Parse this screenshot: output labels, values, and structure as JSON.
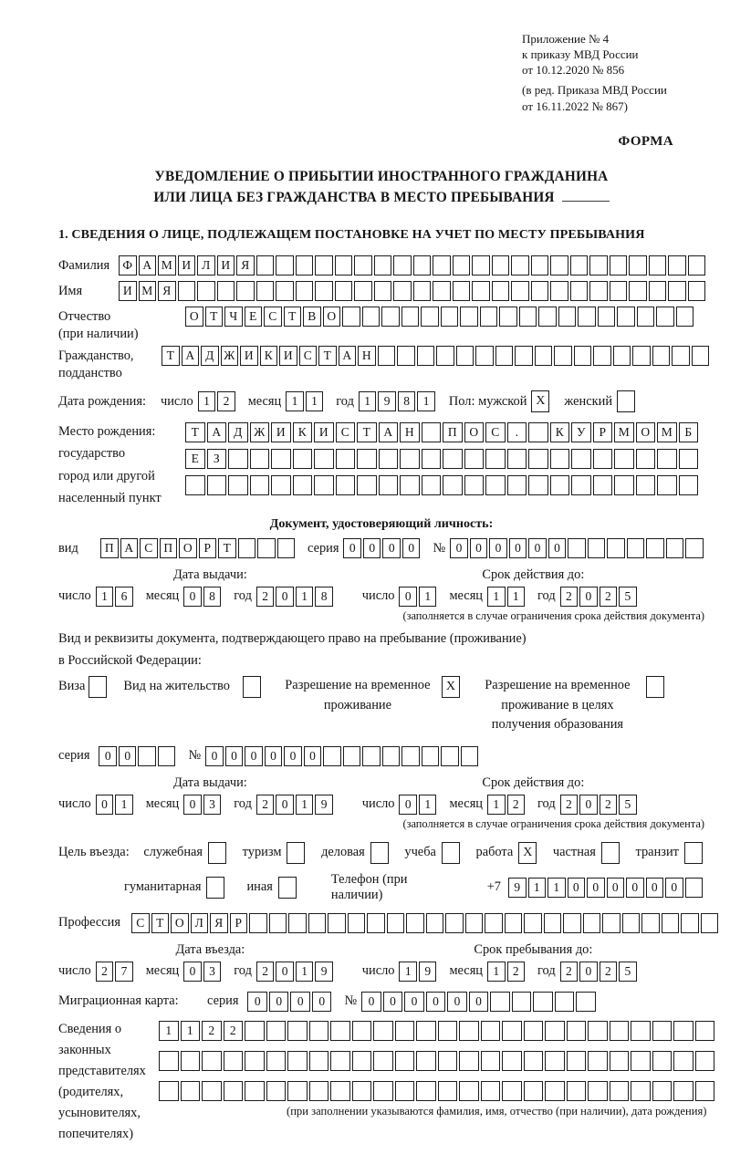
{
  "header_ref": {
    "lines": [
      "Приложение № 4",
      "к приказу МВД России",
      "от 10.12.2020 № 856",
      "(в ред. Приказа МВД России",
      "от 16.11.2022 № 867)"
    ]
  },
  "form_label": "ФОРМА",
  "title": {
    "line1": "УВЕДОМЛЕНИЕ О ПРИБЫТИИ ИНОСТРАННОГО ГРАЖДАНИНА",
    "line2": "ИЛИ ЛИЦА БЕЗ ГРАЖДАНСТВА В МЕСТО ПРЕБЫВАНИЯ"
  },
  "section1_heading": "1. СВЕДЕНИЯ О ЛИЦЕ, ПОДЛЕЖАЩЕМ ПОСТАНОВКЕ НА УЧЕТ ПО МЕСТУ ПРЕБЫВАНИЯ",
  "labels": {
    "day": "число",
    "month": "месяц",
    "year": "год",
    "series": "серия",
    "number": "№"
  },
  "person": {
    "surname": {
      "label": "Фамилия",
      "boxes": {
        "v": "ФАМИЛИЯ",
        "n": 30
      }
    },
    "given_name": {
      "label": "Имя",
      "boxes": {
        "v": "ИМЯ",
        "n": 30
      }
    },
    "patronymic": {
      "label": "Отчество",
      "label2": "(при наличии)",
      "boxes": {
        "v": "ОТЧЕСТВО",
        "n": 26
      }
    },
    "citizenship": {
      "label": "Гражданство,",
      "label2": "подданство",
      "boxes": {
        "v": "ТАДЖИКИСТАН",
        "n": 28
      }
    },
    "birth_date": {
      "label": "Дата рождения:",
      "day": {
        "v": "12",
        "n": 2
      },
      "month": {
        "v": "11",
        "n": 2
      },
      "year": {
        "v": "1981",
        "n": 4
      },
      "sex_label": "Пол: мужской",
      "male": {
        "v": "X",
        "n": 1
      },
      "female_label": "женский",
      "female": {
        "v": "",
        "n": 1
      }
    },
    "birth_place": {
      "labels": [
        "Место рождения:",
        "государство",
        "город или другой",
        "населенный пункт"
      ],
      "rows": [
        {
          "v": "ТАДЖИКИСТАН ПОС. КУРМОМБ",
          "n": 24
        },
        {
          "v": "ЕЗ",
          "n": 24
        },
        {
          "v": "",
          "n": 24
        }
      ]
    }
  },
  "identity_doc": {
    "header": "Документ, удостоверяющий личность:",
    "kind_label": "вид",
    "kind": {
      "v": "ПАСПОРТ",
      "n": 10
    },
    "series": {
      "v": "0000",
      "n": 4
    },
    "number": {
      "v": "000000",
      "n": 13
    },
    "issue": {
      "title": "Дата выдачи:",
      "day": {
        "v": "16",
        "n": 2
      },
      "month": {
        "v": "08",
        "n": 2
      },
      "year": {
        "v": "2018",
        "n": 4
      }
    },
    "expiry": {
      "title": "Срок действия до:",
      "day": {
        "v": "01",
        "n": 2
      },
      "month": {
        "v": "11",
        "n": 2
      },
      "year": {
        "v": "2025",
        "n": 4
      }
    },
    "note": "(заполняется в случае ограничения срока действия документа)"
  },
  "residence_doc": {
    "intro1": "Вид и реквизиты документа, подтверждающего право на пребывание (проживание)",
    "intro2": "в Российской Федерации:",
    "items": [
      {
        "label": "Виза",
        "box": {
          "v": "",
          "n": 1
        }
      },
      {
        "label": "Вид на жительство",
        "box": {
          "v": "",
          "n": 1
        }
      },
      {
        "label": "Разрешение на временное проживание",
        "box": {
          "v": "X",
          "n": 1
        }
      },
      {
        "label": "Разрешение на временное проживание в целях получения образования",
        "box": {
          "v": "",
          "n": 1
        }
      }
    ],
    "series": {
      "v": "00",
      "n": 4
    },
    "number": {
      "v": "000000",
      "n": 14
    },
    "issue": {
      "title": "Дата выдачи:",
      "day": {
        "v": "01",
        "n": 2
      },
      "month": {
        "v": "03",
        "n": 2
      },
      "year": {
        "v": "2019",
        "n": 4
      }
    },
    "expiry": {
      "title": "Срок действия до:",
      "day": {
        "v": "01",
        "n": 2
      },
      "month": {
        "v": "12",
        "n": 2
      },
      "year": {
        "v": "2025",
        "n": 4
      }
    },
    "note": "(заполняется в случае ограничения срока действия документа)"
  },
  "purpose": {
    "label": "Цель въезда:",
    "options": [
      {
        "label": "служебная",
        "box": {
          "v": "",
          "n": 1
        }
      },
      {
        "label": "туризм",
        "box": {
          "v": "",
          "n": 1
        }
      },
      {
        "label": "деловая",
        "box": {
          "v": "",
          "n": 1
        }
      },
      {
        "label": "учеба",
        "box": {
          "v": "",
          "n": 1
        }
      },
      {
        "label": "работа",
        "box": {
          "v": "X",
          "n": 1
        }
      },
      {
        "label": "частная",
        "box": {
          "v": "",
          "n": 1
        }
      },
      {
        "label": "транзит",
        "box": {
          "v": "",
          "n": 1
        }
      }
    ],
    "options2": [
      {
        "label": "гуманитарная",
        "box": {
          "v": "",
          "n": 1
        }
      },
      {
        "label": "иная",
        "box": {
          "v": "",
          "n": 1
        }
      }
    ],
    "phone_label": "Телефон (при наличии)",
    "phone_prefix": "+7",
    "phone": {
      "v": "911000000",
      "n": 10
    }
  },
  "profession": {
    "label": "Профессия",
    "boxes": {
      "v": "СТОЛЯР",
      "n": 30
    }
  },
  "stay": {
    "entry": {
      "title": "Дата въезда:",
      "day": {
        "v": "27",
        "n": 2
      },
      "month": {
        "v": "03",
        "n": 2
      },
      "year": {
        "v": "2019",
        "n": 4
      }
    },
    "until": {
      "title": "Срок пребывания до:",
      "day": {
        "v": "19",
        "n": 2
      },
      "month": {
        "v": "12",
        "n": 2
      },
      "year": {
        "v": "2025",
        "n": 4
      }
    }
  },
  "migration_card": {
    "label": "Миграционная карта:",
    "series": {
      "v": "0000",
      "n": 4
    },
    "number": {
      "v": "000000",
      "n": 11
    }
  },
  "representatives": {
    "labels": [
      "Сведения о",
      "законных",
      "представителях",
      "(родителях,",
      "усыновителях,",
      "попечителях)"
    ],
    "rows": [
      {
        "v": "1122",
        "n": 26
      },
      {
        "v": "",
        "n": 26
      },
      {
        "v": "",
        "n": 26
      }
    ],
    "note": "(при заполнении указываются фамилия, имя, отчество (при наличии), дата рождения)"
  }
}
